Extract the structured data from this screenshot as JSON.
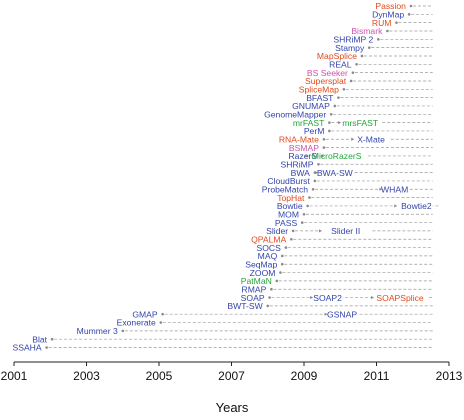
{
  "chart_data": {
    "type": "scatter",
    "title": "",
    "xlabel": "Years",
    "ylabel": "",
    "xlim": [
      2001,
      2013
    ],
    "xticks": [
      2001,
      2003,
      2005,
      2007,
      2009,
      2011,
      2013
    ],
    "grid": false,
    "legend": "none",
    "colors": {
      "blue": "#3344aa",
      "red": "#e04a1c",
      "pink": "#cc55aa",
      "green": "#22a63a",
      "dash": "#9a9a9a",
      "axis": "#222222"
    },
    "line_end": 2012.55,
    "series": [
      {
        "label": "Passion",
        "x": 2011.95,
        "color": "red"
      },
      {
        "label": "DynMap",
        "x": 2011.9,
        "color": "blue"
      },
      {
        "label": "RUM",
        "x": 2011.55,
        "color": "red"
      },
      {
        "label": "Bismark",
        "x": 2011.3,
        "color": "pink"
      },
      {
        "label": "SHRiMP 2",
        "x": 2011.05,
        "color": "blue"
      },
      {
        "label": "Stampy",
        "x": 2010.8,
        "color": "blue"
      },
      {
        "label": "MapSplice",
        "x": 2010.6,
        "color": "red"
      },
      {
        "label": "REAL",
        "x": 2010.45,
        "color": "blue"
      },
      {
        "label": "BS Seeker",
        "x": 2010.35,
        "color": "pink"
      },
      {
        "label": "Supersplat",
        "x": 2010.3,
        "color": "red"
      },
      {
        "label": "SpliceMap",
        "x": 2010.1,
        "color": "red"
      },
      {
        "label": "BFAST",
        "x": 2009.95,
        "color": "blue"
      },
      {
        "label": "GNUMAP",
        "x": 2009.85,
        "color": "blue"
      },
      {
        "label": "GenomeMapper",
        "x": 2009.75,
        "color": "blue"
      },
      {
        "label": "mrFAST",
        "x": 2009.7,
        "color": "green",
        "successor": {
          "label": "mrsFAST",
          "x": 2010.55,
          "color": "green"
        }
      },
      {
        "label": "PerM",
        "x": 2009.7,
        "color": "blue"
      },
      {
        "label": "RNA-Mate",
        "x": 2009.55,
        "color": "red",
        "successor": {
          "label": "X-Mate",
          "x": 2010.85,
          "color": "blue"
        }
      },
      {
        "label": "BSMAP",
        "x": 2009.55,
        "color": "pink"
      },
      {
        "label": "RazerS",
        "x": 2009.5,
        "color": "blue",
        "successor": {
          "label": "MicroRazerS",
          "x": 2009.9,
          "color": "green"
        }
      },
      {
        "label": "SHRiMP",
        "x": 2009.4,
        "color": "blue"
      },
      {
        "label": "BWA",
        "x": 2009.3,
        "color": "blue",
        "successor": {
          "label": "BWA-SW",
          "x": 2009.85,
          "color": "blue"
        }
      },
      {
        "label": "CloudBurst",
        "x": 2009.3,
        "color": "blue"
      },
      {
        "label": "ProbeMatch",
        "x": 2009.25,
        "color": "blue",
        "successor": {
          "label": "WHAM",
          "x": 2011.5,
          "color": "blue"
        }
      },
      {
        "label": "TopHat",
        "x": 2009.15,
        "color": "red"
      },
      {
        "label": "Bowtie",
        "x": 2009.1,
        "color": "blue",
        "successor": {
          "label": "Bowtie2",
          "x": 2012.1,
          "color": "blue"
        }
      },
      {
        "label": "MOM",
        "x": 2009.0,
        "color": "blue"
      },
      {
        "label": "PASS",
        "x": 2008.95,
        "color": "blue"
      },
      {
        "label": "Slider",
        "x": 2008.7,
        "color": "blue",
        "successor": {
          "label": "Slider II",
          "x": 2010.15,
          "color": "blue"
        }
      },
      {
        "label": "QPALMA",
        "x": 2008.65,
        "color": "red"
      },
      {
        "label": "SOCS",
        "x": 2008.5,
        "color": "blue"
      },
      {
        "label": "MAQ",
        "x": 2008.4,
        "color": "blue"
      },
      {
        "label": "SeqMap",
        "x": 2008.4,
        "color": "blue"
      },
      {
        "label": "ZOOM",
        "x": 2008.35,
        "color": "blue"
      },
      {
        "label": "PatMaN",
        "x": 2008.25,
        "color": "green"
      },
      {
        "label": "RMAP",
        "x": 2008.1,
        "color": "blue"
      },
      {
        "label": "SOAP",
        "x": 2008.05,
        "color": "blue",
        "successor": {
          "label": "SOAP2",
          "x": 2009.65,
          "color": "blue"
        },
        "successor2": {
          "label": "SOAPSplice",
          "x": 2011.65,
          "color": "red"
        }
      },
      {
        "label": "BWT-SW",
        "x": 2008.0,
        "color": "blue"
      },
      {
        "label": "GMAP",
        "x": 2005.1,
        "color": "blue",
        "successor": {
          "label": "GSNAP",
          "x": 2010.05,
          "color": "blue"
        }
      },
      {
        "label": "Exonerate",
        "x": 2005.05,
        "color": "blue"
      },
      {
        "label": "Mummer 3",
        "x": 2004.0,
        "color": "blue"
      },
      {
        "label": "Blat",
        "x": 2002.05,
        "color": "blue"
      },
      {
        "label": "SSAHA",
        "x": 2001.9,
        "color": "blue"
      }
    ]
  }
}
